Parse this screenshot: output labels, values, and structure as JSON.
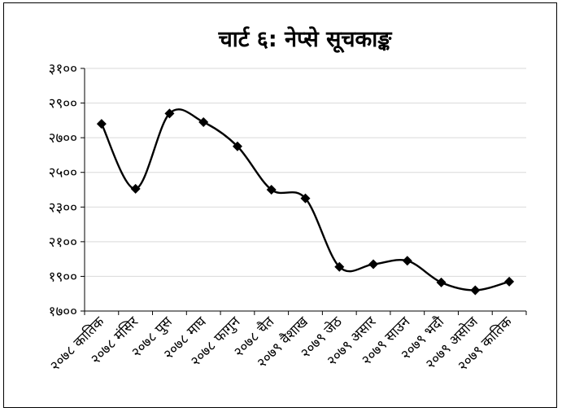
{
  "chart_data": {
    "type": "line",
    "title": "चार्ट ६: नेप्से सूचकाङ्क",
    "categories": [
      "२०७८ कातिक",
      "२०७८ मंसिर",
      "२०७८ पुस",
      "२०७८ माघ",
      "२०७८ फागुन",
      "२०७८ चैत",
      "२०७९ वैशाख",
      "२०७९ जेठ",
      "२०७९ असार",
      "२०७९ साउन",
      "२०७९ भदौ",
      "२०७९ असोज",
      "२०७९ कातिक"
    ],
    "values": [
      2780,
      2405,
      2840,
      2790,
      2650,
      2400,
      2350,
      1955,
      1970,
      1990,
      1865,
      1820,
      1870
    ],
    "ylim": [
      1700,
      3100
    ],
    "yticks": [
      1700,
      1900,
      2100,
      2300,
      2500,
      2700,
      2900,
      3100
    ],
    "ytick_labels": [
      "१७००",
      "१९००",
      "२१००",
      "२३००",
      "२५००",
      "२७००",
      "२९००",
      "३१००"
    ],
    "grid": true,
    "colors": {
      "line": "#000000",
      "marker": "#000000",
      "grid": "#d9d9d9"
    }
  }
}
